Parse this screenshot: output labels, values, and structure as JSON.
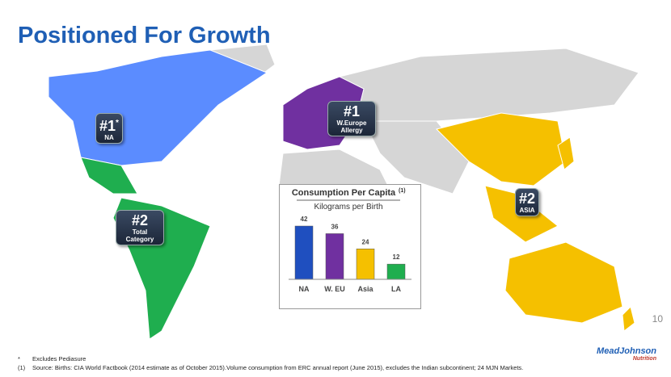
{
  "title": "Positioned For Growth",
  "badges": [
    {
      "rank": "#1",
      "mark": "*",
      "label": "NA"
    },
    {
      "rank": "#1",
      "label": "W.Europe",
      "sublabel": "Allergy"
    },
    {
      "rank": "#2",
      "label": "ASIA"
    },
    {
      "rank": "#2",
      "label": "Total",
      "sublabel": "Category"
    }
  ],
  "chart_data": {
    "type": "bar",
    "title": "Consumption Per Capita",
    "title_note": "(1)",
    "subtitle": "Kilograms per Birth",
    "categories": [
      "NA",
      "W. EU",
      "Asia",
      "LA"
    ],
    "values": [
      42,
      36,
      24,
      12
    ],
    "colors": [
      "#1f4fbf",
      "#7030a0",
      "#f5c000",
      "#1fae4f"
    ]
  },
  "footnotes": [
    {
      "marker": "*",
      "text": "Excludes Pediasure"
    },
    {
      "marker": "(1)",
      "text": "Source: Births: CIA World Factbook (2014 estimate as of October 2015).Volume consumption from ERC annual report (June 2015), excludes the Indian subcontinent; 24 MJN Markets."
    }
  ],
  "page_number": "10",
  "logo": {
    "brand": "MeadJohnson",
    "tagline": "Nutrition"
  }
}
